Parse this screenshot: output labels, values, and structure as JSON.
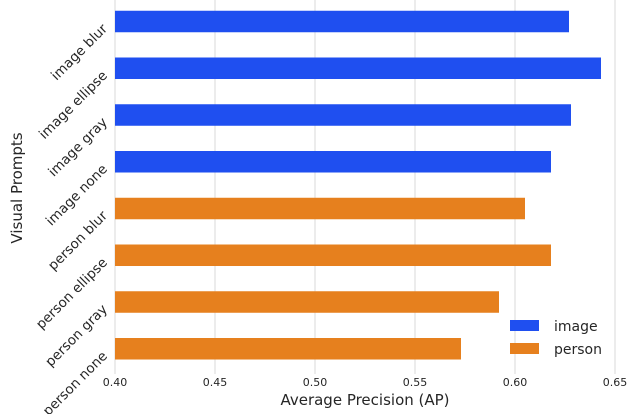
{
  "chart_data": {
    "type": "bar",
    "orientation": "horizontal",
    "ylabel": "Visual Prompts",
    "xlabel": "Average Precision (AP)",
    "xlim": [
      0.4,
      0.65
    ],
    "xticks": [
      "0.40",
      "0.45",
      "0.50",
      "0.55",
      "0.60",
      "0.65"
    ],
    "categories": [
      "image blur",
      "image ellipse",
      "image gray",
      "image none",
      "person blur",
      "person ellipse",
      "person gray",
      "person none"
    ],
    "series": [
      {
        "name": "image",
        "color": "#1f4ff0",
        "values": [
          0.627,
          0.643,
          0.628,
          0.618,
          null,
          null,
          null,
          null
        ]
      },
      {
        "name": "person",
        "color": "#e6801e",
        "values": [
          null,
          null,
          null,
          null,
          0.605,
          0.618,
          0.592,
          0.573
        ]
      }
    ],
    "grid": true,
    "legend": "bottom-right"
  }
}
